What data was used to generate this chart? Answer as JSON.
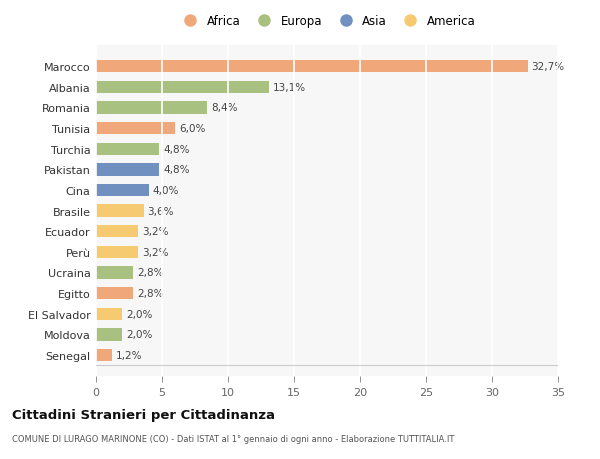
{
  "countries": [
    "Marocco",
    "Albania",
    "Romania",
    "Tunisia",
    "Turchia",
    "Pakistan",
    "Cina",
    "Brasile",
    "Ecuador",
    "Perù",
    "Ucraina",
    "Egitto",
    "El Salvador",
    "Moldova",
    "Senegal"
  ],
  "values": [
    32.7,
    13.1,
    8.4,
    6.0,
    4.8,
    4.8,
    4.0,
    3.6,
    3.2,
    3.2,
    2.8,
    2.8,
    2.0,
    2.0,
    1.2
  ],
  "labels": [
    "32,7%",
    "13,1%",
    "8,4%",
    "6,0%",
    "4,8%",
    "4,8%",
    "4,0%",
    "3,6%",
    "3,2%",
    "3,2%",
    "2,8%",
    "2,8%",
    "2,0%",
    "2,0%",
    "1,2%"
  ],
  "continents": [
    "Africa",
    "Europa",
    "Europa",
    "Africa",
    "Europa",
    "Asia",
    "Asia",
    "America",
    "America",
    "America",
    "Europa",
    "Africa",
    "America",
    "Europa",
    "Africa"
  ],
  "continent_colors": {
    "Africa": "#F0A87A",
    "Europa": "#A8C080",
    "Asia": "#7090BF",
    "America": "#F5CA70"
  },
  "legend_order": [
    "Africa",
    "Europa",
    "Asia",
    "America"
  ],
  "title": "Cittadini Stranieri per Cittadinanza",
  "subtitle": "COMUNE DI LURAGO MARINONE (CO) - Dati ISTAT al 1° gennaio di ogni anno - Elaborazione TUTTITALIA.IT",
  "xlim": [
    0,
    35
  ],
  "xticks": [
    0,
    5,
    10,
    15,
    20,
    25,
    30,
    35
  ],
  "background_color": "#ffffff",
  "plot_bg_color": "#f7f7f7",
  "grid_color": "#ffffff",
  "bar_height": 0.6
}
